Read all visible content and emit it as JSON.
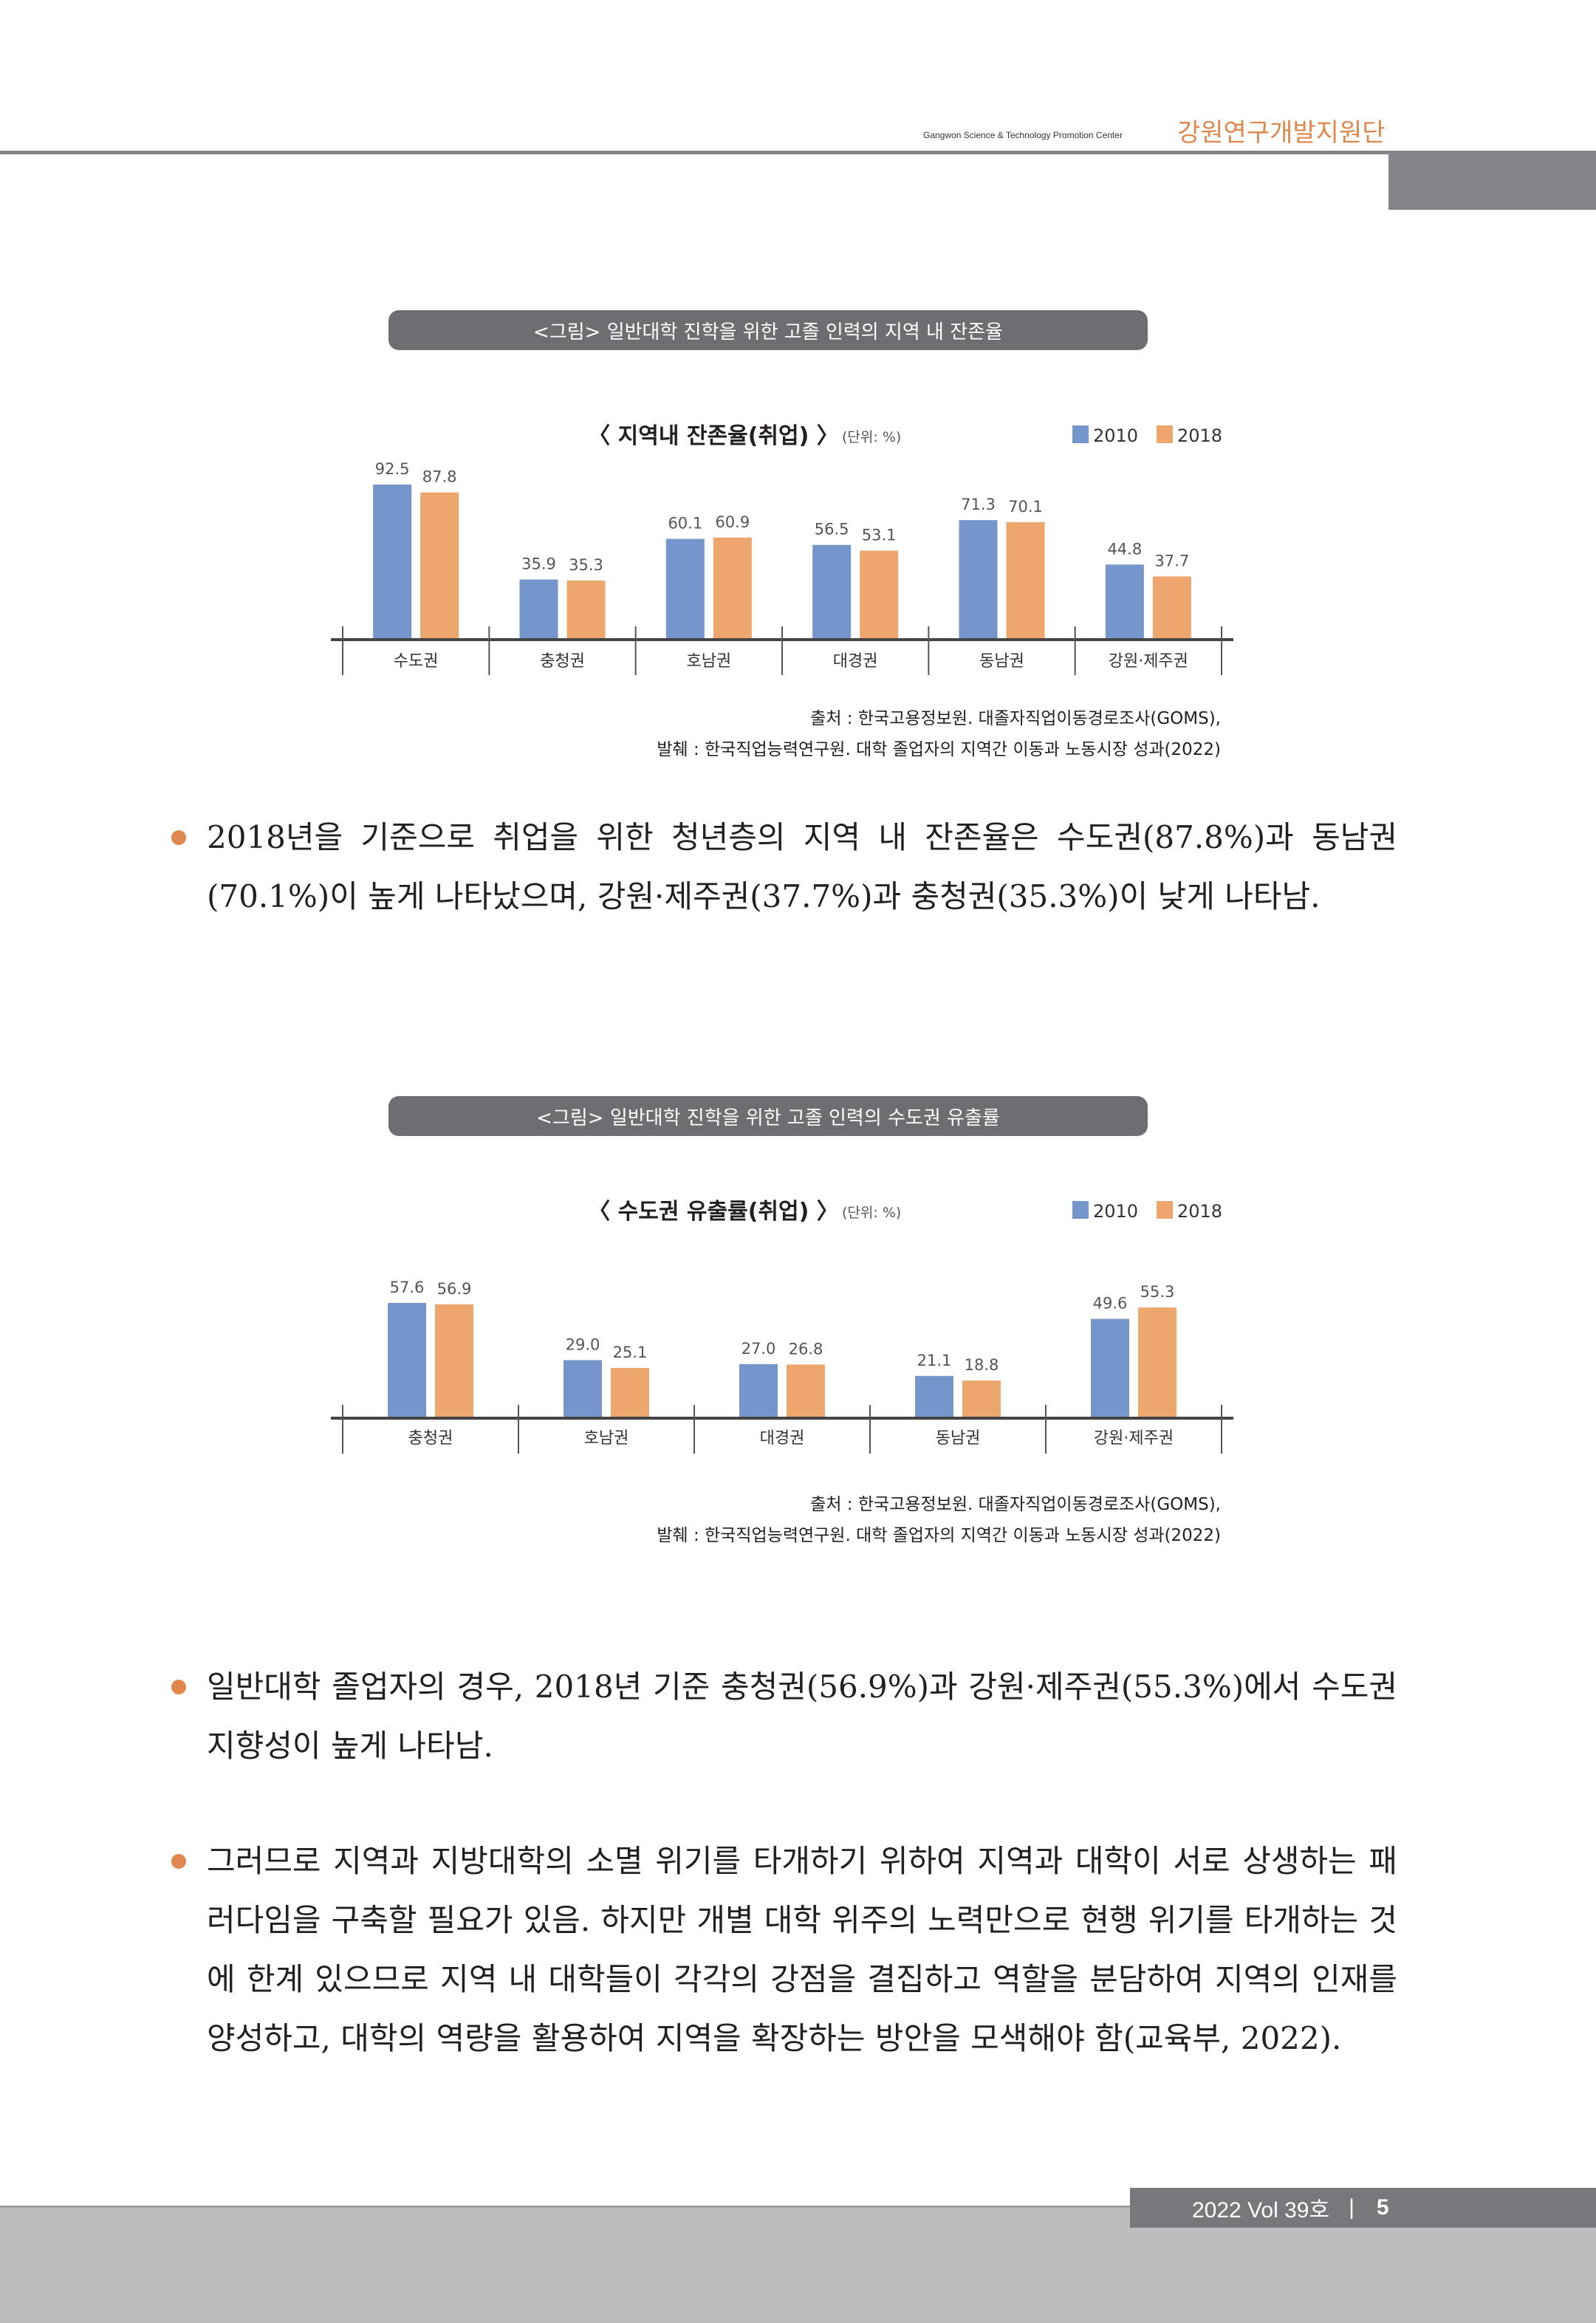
{
  "header": {
    "org_english": "Gangwon Science & Technology Promotion Center",
    "org_korean": "강원연구개발지원단"
  },
  "figures": [
    {
      "caption": "<그림> 일반대학 진학을 위한 고졸 인력의 지역 내 잔존율",
      "source_line1": "출처 : 한국고용정보원. 대졸자직업이동경로조사(GOMS),",
      "source_line2": "발췌 : 한국직업능력연구원. 대학 졸업자의 지역간 이동과 노동시장 성과(2022)"
    },
    {
      "caption": "<그림> 일반대학 진학을 위한 고졸 인력의 수도권 유출률",
      "source_line1": "출처 : 한국고용정보원. 대졸자직업이동경로조사(GOMS),",
      "source_line2": "발췌 : 한국직업능력연구원. 대학 졸업자의 지역간 이동과 노동시장 성과(2022)"
    }
  ],
  "chart_data": [
    {
      "type": "bar",
      "title": "〈 지역내 잔존율(취업) 〉",
      "unit": "(단위: %)",
      "categories": [
        "수도권",
        "충청권",
        "호남권",
        "대경권",
        "동남권",
        "강원·제주권"
      ],
      "series": [
        {
          "name": "2010",
          "color": "#7596cc",
          "values": [
            92.5,
            35.9,
            60.1,
            56.5,
            71.3,
            44.8
          ]
        },
        {
          "name": "2018",
          "color": "#eda66c",
          "values": [
            87.8,
            35.3,
            60.9,
            53.1,
            70.1,
            37.7
          ]
        }
      ],
      "legend": "top-right",
      "ylim": [
        0,
        100
      ]
    },
    {
      "type": "bar",
      "title": "〈 수도권 유출률(취업) 〉",
      "unit": "(단위: %)",
      "categories": [
        "충청권",
        "호남권",
        "대경권",
        "동남권",
        "강원·제주권"
      ],
      "series": [
        {
          "name": "2010",
          "color": "#7596cc",
          "values": [
            57.6,
            29.0,
            27.0,
            21.1,
            49.6
          ]
        },
        {
          "name": "2018",
          "color": "#eda66c",
          "values": [
            56.9,
            25.1,
            26.8,
            18.8,
            55.3
          ]
        }
      ],
      "legend": "top-right",
      "ylim": [
        0,
        70
      ]
    }
  ],
  "bullets": [
    "2018년을 기준으로 취업을 위한 청년층의 지역 내 잔존율은 수도권(87.8%)과 동남권(70.1%)이 높게 나타났으며, 강원·제주권(37.7%)과 충청권(35.3%)이 낮게 나타남.",
    "일반대학 졸업자의 경우, 2018년 기준 충청권(56.9%)과 강원·제주권(55.3%)에서 수도권 지향성이 높게 나타남.",
    "그러므로 지역과 지방대학의 소멸 위기를 타개하기 위하여 지역과 대학이 서로 상생하는 패러다임을 구축할 필요가 있음. 하지만 개별 대학 위주의 노력만으로 현행 위기를 타개하는 것에 한계 있으므로 지역 내 대학들이 각각의 강점을 결집하고 역할을 분담하여 지역의 인재를 양성하고, 대학의 역량을 활용하여 지역을 확장하는 방안을 모색해야 함(교육부, 2022)."
  ],
  "footer": {
    "issue": "2022 Vol 39호",
    "separator": "|",
    "page_number": "5"
  },
  "colors": {
    "accent": "#e0874e",
    "gray": "#77787b"
  }
}
